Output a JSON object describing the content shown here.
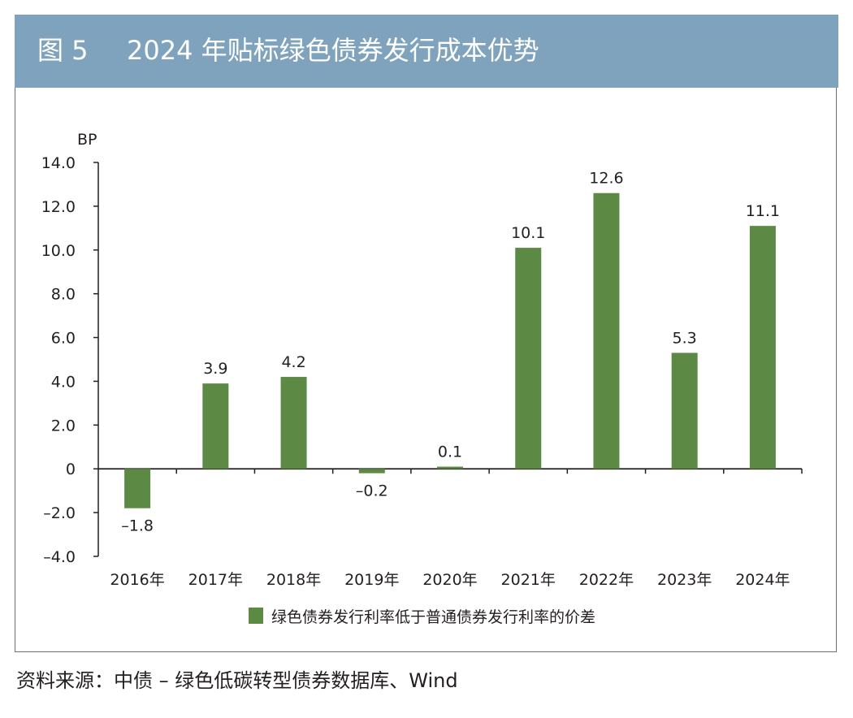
{
  "header": {
    "figure_number": "图 5",
    "title": "2024 年贴标绿色债券发行成本优势"
  },
  "source": "资料来源：中债 – 绿色低碳转型债券数据库、Wind",
  "colors": {
    "header_bg": "#7fa3bd",
    "bar": "#5c8a45",
    "axis": "#231f20"
  },
  "chart_data": {
    "type": "bar",
    "title": "2024 年贴标绿色债券发行成本优势",
    "ylabel": "BP",
    "xlabel": "",
    "ylim": [
      -4.0,
      14.0
    ],
    "yticks": [
      14.0,
      12.0,
      10.0,
      8.0,
      6.0,
      4.0,
      2.0,
      0,
      -2.0,
      -4.0
    ],
    "ytick_labels": [
      "14.0",
      "12.0",
      "10.0",
      "8.0",
      "6.0",
      "4.0",
      "2.0",
      "0",
      "–2.0",
      "–4.0"
    ],
    "categories": [
      "2016年",
      "2017年",
      "2018年",
      "2019年",
      "2020年",
      "2021年",
      "2022年",
      "2023年",
      "2024年"
    ],
    "series": [
      {
        "name": "绿色债券发行利率低于普通债券发行利率的价差",
        "values": [
          -1.8,
          3.9,
          4.2,
          -0.2,
          0.1,
          10.1,
          12.6,
          5.3,
          11.1
        ],
        "labels": [
          "–1.8",
          "3.9",
          "4.2",
          "–0.2",
          "0.1",
          "10.1",
          "12.6",
          "5.3",
          "11.1"
        ]
      }
    ],
    "legend_position": "bottom-center",
    "grid": false
  }
}
